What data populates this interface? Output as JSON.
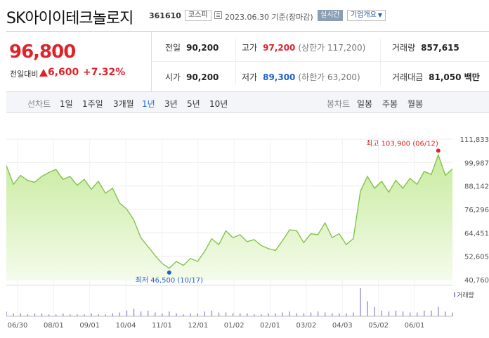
{
  "stock": {
    "name": "SK아이이테크놀로지",
    "code": "361610",
    "market": "코스피",
    "date_text": "2023.06.30 기준(장마감)",
    "realtime": "실시간",
    "company_info": "기업개요"
  },
  "price": {
    "current": "96,800",
    "diff_label": "전일대비",
    "diff_value": "6,600",
    "diff_percent": "+7.32%"
  },
  "stats": {
    "prev_label": "전일",
    "prev_value": "90,200",
    "high_label": "고가",
    "high_value": "97,200",
    "upper_limit": "(상한가 117,200)",
    "volume_label": "거래량",
    "volume_value": "857,615",
    "open_label": "시가",
    "open_value": "90,200",
    "low_label": "저가",
    "low_value": "89,300",
    "lower_limit": "(하한가 63,200)",
    "amount_label": "거래대금",
    "amount_value": "81,050 백만"
  },
  "period_nav": {
    "line_chart_label": "선차트",
    "line_periods": [
      "1일",
      "1주일",
      "3개월",
      "1년",
      "3년",
      "5년",
      "10년"
    ],
    "active_period": "1년",
    "candle_chart_label": "봉차트",
    "candle_periods": [
      "일봉",
      "주봉",
      "월봉"
    ]
  },
  "chart_data": {
    "type": "area",
    "title": "",
    "y_ticks": [
      "111,833",
      "99,987",
      "88,142",
      "76,296",
      "64,451",
      "52,605",
      "40,760"
    ],
    "ylim": [
      40760,
      111833
    ],
    "x_ticks": [
      "06/30",
      "08/01",
      "09/01",
      "10/04",
      "11/01",
      "12/01",
      "01/02",
      "02/01",
      "03/02",
      "04/03",
      "05/02",
      "06/01"
    ],
    "high_annotation": "최고 103,900 (06/12)",
    "low_annotation": "최저 46,500 (10/17)",
    "volume_label": "거래량",
    "grid": true,
    "colors": {
      "fill_top": "#c8eb9e",
      "fill_bottom": "#f2fbe8",
      "line": "#7bc043",
      "high": "#e0232b",
      "low": "#1f62c6",
      "volume": "#9b8fd8"
    },
    "x": [
      0,
      4,
      8,
      12,
      16,
      20,
      24,
      28,
      32,
      36,
      40,
      44,
      48,
      52,
      56,
      60,
      64,
      68,
      72,
      76,
      80,
      84,
      88,
      92,
      96,
      100,
      104,
      108,
      112,
      116,
      120,
      124,
      128,
      132,
      136,
      140,
      144,
      148,
      152,
      156,
      160,
      164,
      168,
      172,
      176,
      180,
      184,
      188,
      192,
      196,
      200,
      204,
      208,
      212,
      216,
      220,
      224,
      228,
      232,
      236,
      240,
      244,
      248,
      252
    ],
    "values": [
      98500,
      89000,
      93500,
      91000,
      90000,
      93000,
      95000,
      96500,
      91500,
      93000,
      88500,
      91500,
      86500,
      90500,
      84500,
      87000,
      79500,
      76500,
      71000,
      62000,
      57500,
      53000,
      49000,
      46500,
      50000,
      48000,
      51500,
      50000,
      55000,
      61500,
      58500,
      65500,
      62000,
      63500,
      60000,
      61000,
      58000,
      56500,
      55500,
      60500,
      66000,
      65500,
      59500,
      64000,
      63500,
      69500,
      62000,
      64000,
      58500,
      61500,
      85500,
      93000,
      87000,
      90500,
      85000,
      91000,
      87000,
      92000,
      89000,
      95500,
      94000,
      103900,
      93500,
      96800
    ],
    "volume": [
      5,
      3,
      3,
      2,
      3,
      3,
      2,
      2,
      3,
      2,
      2,
      2,
      3,
      2,
      2,
      3,
      4,
      6,
      8,
      5,
      6,
      4,
      3,
      5,
      3,
      2,
      3,
      3,
      5,
      6,
      4,
      4,
      3,
      3,
      3,
      2,
      2,
      3,
      3,
      4,
      5,
      3,
      3,
      4,
      5,
      4,
      3,
      3,
      3,
      4,
      30,
      16,
      10,
      6,
      5,
      6,
      5,
      4,
      4,
      6,
      6,
      10,
      5,
      4
    ]
  }
}
